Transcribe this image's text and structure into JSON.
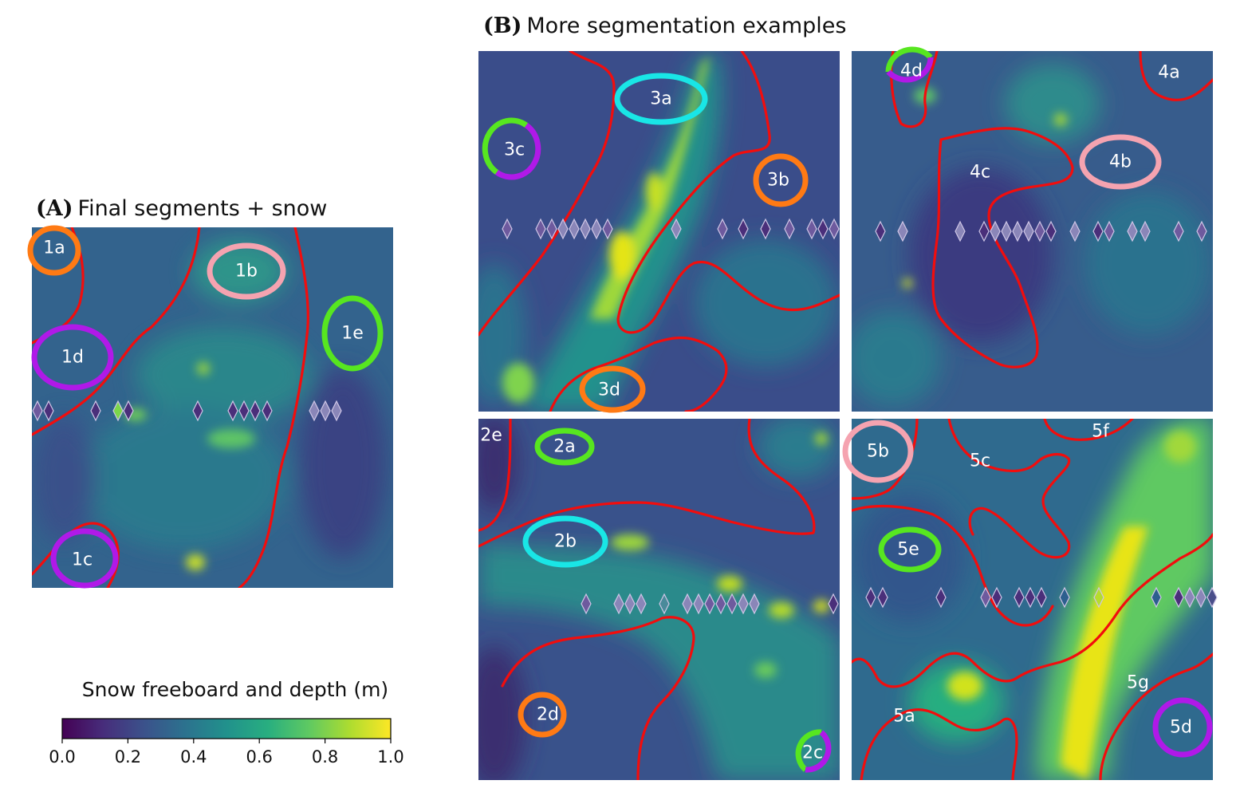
{
  "panel_a": {
    "letter": "(A)",
    "title": "Final segments + snow"
  },
  "panel_b": {
    "letter": "(B)",
    "title": "More segmentation examples"
  },
  "colorbar": {
    "title": "Snow freeboard and depth (m)",
    "ticks": [
      "0.0",
      "0.2",
      "0.4",
      "0.6",
      "0.8",
      "1.0"
    ],
    "range": [
      0,
      1
    ],
    "colormap": "viridis"
  },
  "colors": {
    "segment_boundary": "#f20d0d",
    "marker_orange": "#ff7a14",
    "marker_pink": "#f5a3b0",
    "marker_green": "#57e620",
    "marker_purple": "#b019e8",
    "marker_cyan": "#19e6e6",
    "diamond": "#4a2f7a"
  },
  "labels": {
    "1a": "1a",
    "1b": "1b",
    "1c": "1c",
    "1d": "1d",
    "1e": "1e",
    "2a": "2a",
    "2b": "2b",
    "2c": "2c",
    "2d": "2d",
    "2e": "2e",
    "3a": "3a",
    "3b": "3b",
    "3c": "3c",
    "3d": "3d",
    "4a": "4a",
    "4b": "4b",
    "4c": "4c",
    "4d": "4d",
    "5a": "5a",
    "5b": "5b",
    "5c": "5c",
    "5d": "5d",
    "5e": "5e",
    "5f": "5f",
    "5g": "5g"
  },
  "segment_marker_colors": {
    "1a": "orange",
    "1b": "pink",
    "1c": "purple",
    "1d": "purple",
    "1e": "green",
    "2a": "green",
    "2b": "cyan",
    "2c": "green+purple",
    "2d": "orange",
    "3a": "cyan",
    "3b": "orange",
    "3c": "green+purple",
    "3d": "orange",
    "4b": "pink",
    "4d": "green+purple",
    "5b": "pink",
    "5d": "purple",
    "5e": "green"
  }
}
